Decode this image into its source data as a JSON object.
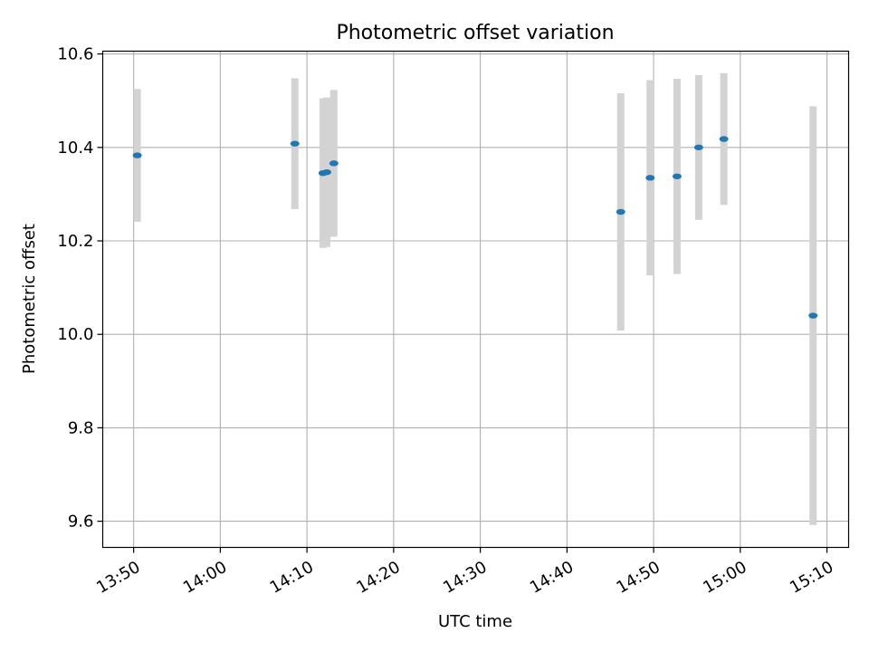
{
  "chart_data": {
    "type": "scatter",
    "title": "Photometric offset variation",
    "xlabel": "UTC time",
    "ylabel": "Photometric offset",
    "x_ticks": [
      "13:50",
      "14:00",
      "14:10",
      "14:20",
      "14:30",
      "14:40",
      "14:50",
      "15:00",
      "15:10"
    ],
    "y_ticks": [
      "9.6",
      "9.8",
      "10.0",
      "10.2",
      "10.4",
      "10.6"
    ],
    "xlim": [
      "13:46:26",
      "15:12:30"
    ],
    "ylim": [
      9.544,
      10.606
    ],
    "grid": true,
    "colors": {
      "point": "#1f77b4",
      "errorbar": "#d3d3d3",
      "grid": "#b0b0b0"
    },
    "points": [
      {
        "x": "13:50:25",
        "y": 10.383,
        "yerr": 0.142
      },
      {
        "x": "14:08:36",
        "y": 10.408,
        "yerr": 0.14
      },
      {
        "x": "14:11:51",
        "y": 10.345,
        "yerr": 0.16
      },
      {
        "x": "14:12:17",
        "y": 10.347,
        "yerr": 0.16
      },
      {
        "x": "14:13:06",
        "y": 10.366,
        "yerr": 0.157
      },
      {
        "x": "14:46:12",
        "y": 10.262,
        "yerr": 0.254
      },
      {
        "x": "14:49:36",
        "y": 10.335,
        "yerr": 0.209
      },
      {
        "x": "14:52:42",
        "y": 10.338,
        "yerr": 0.209
      },
      {
        "x": "14:55:12",
        "y": 10.4,
        "yerr": 0.155
      },
      {
        "x": "14:58:06",
        "y": 10.418,
        "yerr": 0.141
      },
      {
        "x": "15:08:24",
        "y": 10.04,
        "yerr": 0.448
      }
    ]
  }
}
